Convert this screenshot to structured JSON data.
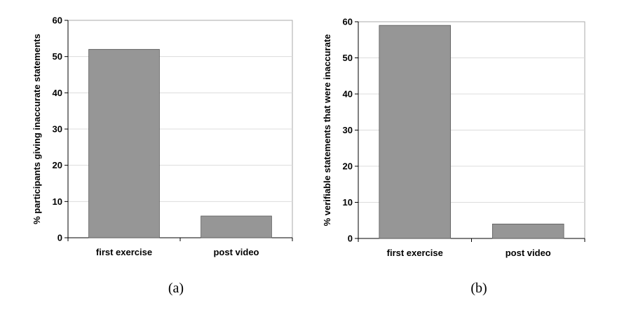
{
  "chart_data": [
    {
      "type": "bar",
      "panel_label": "(a)",
      "categories": [
        "first exercise",
        "post video"
      ],
      "values": [
        52,
        6
      ],
      "ylabel": "% participants giving inaccurate statements",
      "ylim": [
        0,
        60
      ],
      "yticks": [
        "0",
        "10",
        "20",
        "30",
        "40",
        "50",
        "60"
      ],
      "grid": true,
      "bar_color": "#969696"
    },
    {
      "type": "bar",
      "panel_label": "(b)",
      "categories": [
        "first exercise",
        "post video"
      ],
      "values": [
        59,
        4
      ],
      "ylabel": "% verifiable statements that were inaccurate",
      "ylim": [
        0,
        60
      ],
      "yticks": [
        "0",
        "10",
        "20",
        "30",
        "40",
        "50",
        "60"
      ],
      "grid": true,
      "bar_color": "#969696"
    }
  ]
}
